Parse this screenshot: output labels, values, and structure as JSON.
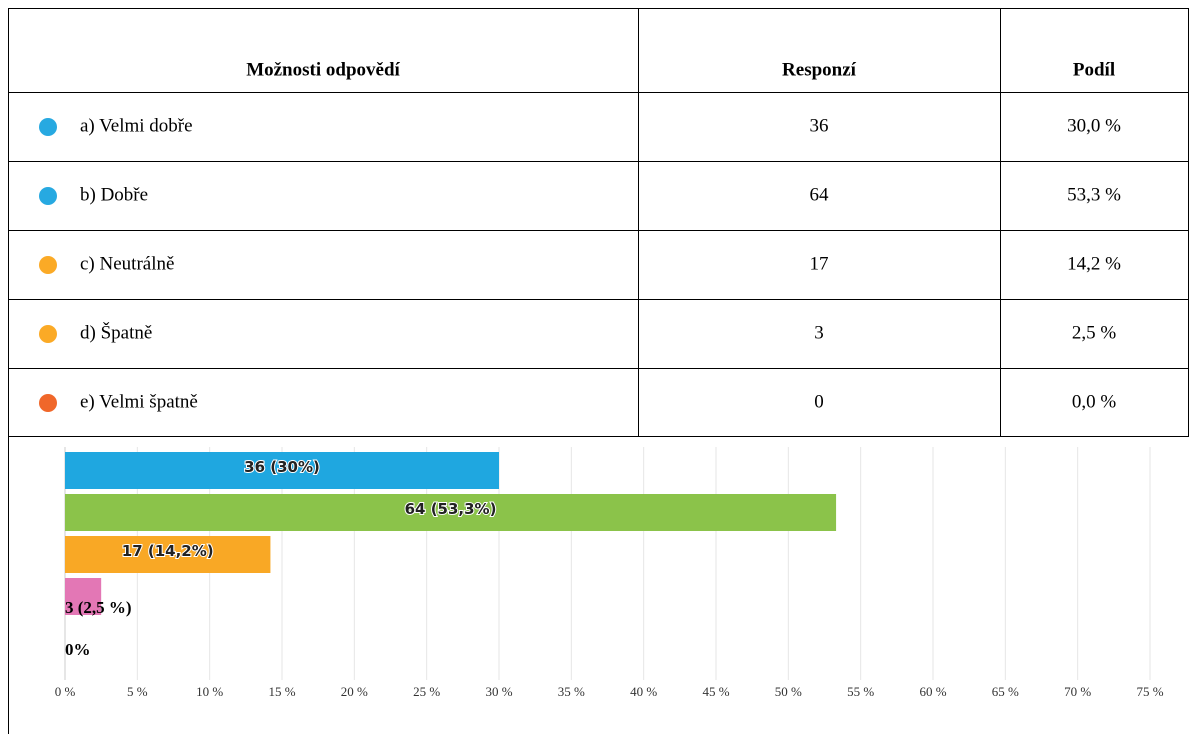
{
  "table": {
    "header": [
      "Možnosti odpovědí",
      "Responzí",
      "Podíl"
    ],
    "rows": [
      [
        "a) Velmi dobře",
        "36",
        "30,0 %"
      ],
      [
        "b) Dobře",
        "64",
        "53,3 %"
      ],
      [
        "c) Neutrálně",
        "17",
        "14,2 %"
      ],
      [
        "d) Špatně",
        "3",
        "2,5 %"
      ],
      [
        "e) Velmi špatně",
        "0",
        "0,0 %"
      ]
    ],
    "dot_colors": [
      "#27a9e1",
      "#27a9e1",
      "#fbaa26",
      "#fbaa26",
      "#f0672a"
    ]
  },
  "chart_data": {
    "type": "hbar",
    "values": [
      30,
      53.3,
      14.2,
      2.5,
      0
    ],
    "value_labels": [
      "36 (30%)",
      "64 (53,3%)",
      "17 (14,2%)",
      "3 (2,5 %)",
      "0%"
    ],
    "colors": [
      "#1fa7e0",
      "#8bc34a",
      "#f9a825",
      "#e377b5",
      "#9ec9e8"
    ],
    "xlim": [
      0,
      75
    ],
    "xticks": [
      {
        "value": 0,
        "label": "0 %"
      },
      {
        "value": 5,
        "label": "5 %"
      },
      {
        "value": 10,
        "label": "10 %"
      },
      {
        "value": 15,
        "label": "15 %"
      },
      {
        "value": 20,
        "label": "20 %"
      },
      {
        "value": 25,
        "label": "25 %"
      },
      {
        "value": 30,
        "label": "30 %"
      },
      {
        "value": 35,
        "label": "35 %"
      },
      {
        "value": 40,
        "label": "40 %"
      },
      {
        "value": 45,
        "label": "45 %"
      },
      {
        "value": 50,
        "label": "50 %"
      },
      {
        "value": 55,
        "label": "55 %"
      },
      {
        "value": 60,
        "label": "60 %"
      },
      {
        "value": 65,
        "label": "65 %"
      },
      {
        "value": 70,
        "label": "70 %"
      },
      {
        "value": 75,
        "label": "75 %"
      }
    ],
    "grid": true
  }
}
